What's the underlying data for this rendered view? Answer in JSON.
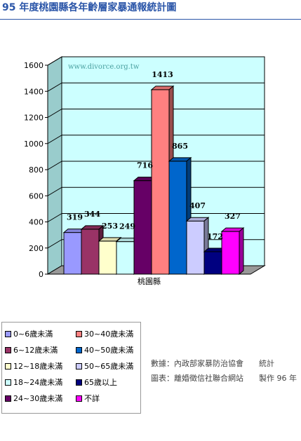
{
  "page": {
    "title": "95 年度桃園縣各年齡層家暴通報統計圖"
  },
  "chart_data": {
    "type": "bar",
    "title": "",
    "watermark": "www.divorce.org.tw",
    "categories": [
      "桃園縣"
    ],
    "ylim": [
      0,
      1600
    ],
    "yticks": [
      0,
      200,
      400,
      600,
      800,
      1000,
      1200,
      1400,
      1600
    ],
    "grid": true,
    "legend_placement": "bottom-left",
    "series": [
      {
        "name": "0~6歲未滿",
        "values": [
          319
        ],
        "label": "319",
        "color": "#9999ff"
      },
      {
        "name": "6~12歲未滿",
        "values": [
          344
        ],
        "label": "344",
        "color": "#993366"
      },
      {
        "name": "12~18歲未滿",
        "values": [
          253
        ],
        "label": "253",
        "color": "#ffffcc"
      },
      {
        "name": "18~24歲未滿",
        "values": [
          249
        ],
        "label": "249",
        "color": "#ccffff"
      },
      {
        "name": "24~30歲未滿",
        "values": [
          716
        ],
        "label": "716",
        "color": "#660066"
      },
      {
        "name": "30~40歲未滿",
        "values": [
          1413
        ],
        "label": "1413",
        "color": "#ff8080"
      },
      {
        "name": "40~50歲未滿",
        "values": [
          865
        ],
        "label": "865",
        "color": "#0066cc"
      },
      {
        "name": "50~65歲未滿",
        "values": [
          407
        ],
        "label": "407",
        "color": "#ccccff"
      },
      {
        "name": "65歲以上",
        "values": [
          172
        ],
        "label": "172",
        "color": "#000080"
      },
      {
        "name": "不詳",
        "values": [
          327
        ],
        "label": "327",
        "color": "#ff00ff"
      }
    ],
    "colors": {
      "wall": "#ccffff",
      "floor": "#999999",
      "wall_border": "#000000"
    }
  },
  "credits": {
    "line1": "數據：內政部家暴防治協會　　統計",
    "line2": "圖表：離婚徵信社聯合網站　　製作 96 年"
  }
}
